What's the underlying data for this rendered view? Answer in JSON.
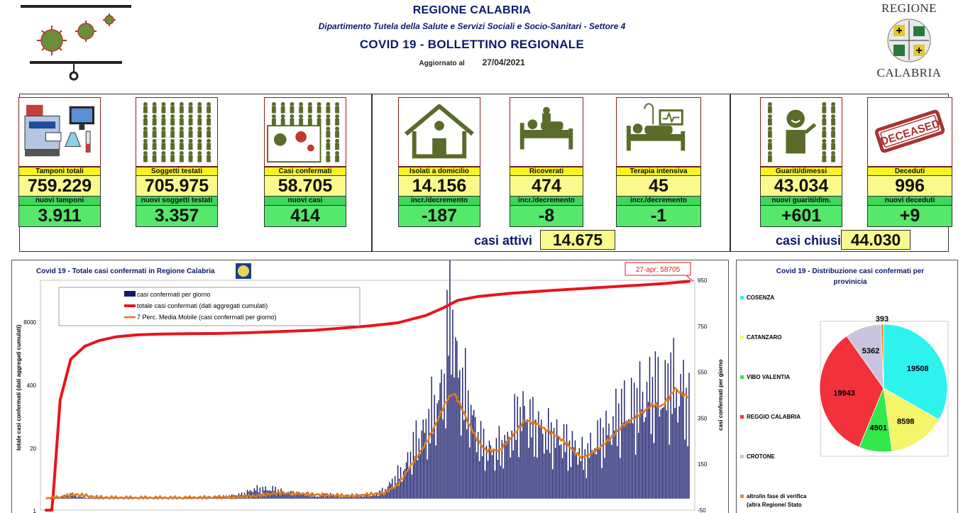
{
  "header": {
    "region": "REGIONE CALABRIA",
    "department": "Dipartimento Tutela della Salute e Servizi Sociali e Socio-Sanitari - Settore 4",
    "bulletin": "COVID 19 - BOLLETTINO REGIONALE",
    "updated_label": "Aggiornato al",
    "updated_date": "27/04/2021",
    "logo_line1": "REGIONE",
    "logo_line2": "CALABRIA"
  },
  "stats": [
    {
      "label": "Tamponi totali",
      "value": "759.229",
      "sublabel": "nuovi tamponi",
      "subvalue": "3.911",
      "icon": "lab-equipment-icon"
    },
    {
      "label": "Soggetti testati",
      "value": "705.975",
      "sublabel": "nuovi soggetti testati",
      "subvalue": "3.357",
      "icon": "people-grid-icon"
    },
    {
      "label": "Casi confermati",
      "value": "58.705",
      "sublabel": "nuovi casi",
      "subvalue": "414",
      "icon": "infected-person-icon"
    },
    {
      "label": "Isolati a domicilio",
      "value": "14.156",
      "sublabel": "incr./decremento",
      "subvalue": "-187",
      "icon": "house-icon"
    },
    {
      "label": "Ricoverati",
      "value": "474",
      "sublabel": "incr./decremento",
      "subvalue": "-8",
      "icon": "hospital-bed-icon"
    },
    {
      "label": "Terapia intensiva",
      "value": "45",
      "sublabel": "incr./decremento",
      "subvalue": "-1",
      "icon": "icu-bed-icon"
    },
    {
      "label": "Guariti/dimessi",
      "value": "43.034",
      "sublabel": "nuovi guariti/dim.",
      "subvalue": "+601",
      "icon": "recovered-person-icon"
    },
    {
      "label": "Deceduti",
      "value": "996",
      "sublabel": "nuovi deceduti",
      "subvalue": "+9",
      "icon": "deceased-stamp-icon"
    }
  ],
  "deceased_stamp": "DECEASED",
  "summary": {
    "active_label": "casi attivi",
    "active_value": "14.675",
    "closed_label": "casi chiusi",
    "closed_value": "44.030"
  },
  "colors": {
    "yellow": "#f7f31f",
    "green": "#55e86b",
    "navy": "#0c1a6b",
    "cumulative_line": "#e8141c",
    "daily_bars": "#151869",
    "moving_average": "#e07a1f"
  },
  "chart_data": [
    {
      "type": "bar",
      "title": "Covid 19 - Totale casi confermati in Regione Calabria",
      "ylabel_left": "totale casi confermati (dati aggregati cumulati)",
      "ylabel_right": "casi confermati per giorno",
      "left_axis_ticks": [
        "1",
        "20",
        "400",
        "8000"
      ],
      "left_axis_scale": "log",
      "right_axis_ticks": [
        -50,
        150,
        350,
        550,
        750,
        950
      ],
      "right_ylim": [
        -50,
        950
      ],
      "callout": "27-apr; 58705",
      "legend": [
        "casi confermati per giorno",
        "totale casi confermati (dati aggregati cumulati)",
        "7 Perc. Media Mobile (casi confermati per giorno)"
      ],
      "legend_placement": "top-left",
      "series": [
        {
          "name": "casi confermati per giorno",
          "type": "bar",
          "anchors": [
            [
              0,
              2
            ],
            [
              18,
              8
            ],
            [
              35,
              20
            ],
            [
              45,
              10
            ],
            [
              55,
              4
            ],
            [
              70,
              4
            ],
            [
              100,
              3
            ],
            [
              150,
              3
            ],
            [
              195,
              4
            ],
            [
              235,
              8
            ],
            [
              260,
              12
            ],
            [
              280,
              20
            ],
            [
              295,
              40
            ],
            [
              325,
              40
            ],
            [
              340,
              25
            ],
            [
              370,
              20
            ],
            [
              385,
              8
            ],
            [
              400,
              20
            ],
            [
              420,
              10
            ],
            [
              440,
              15
            ],
            [
              463,
              12
            ],
            [
              480,
              35
            ],
            [
              495,
              80
            ],
            [
              510,
              130
            ],
            [
              525,
              230
            ],
            [
              540,
              300
            ],
            [
              555,
              390
            ],
            [
              568,
              520
            ],
            [
              575,
              920
            ],
            [
              582,
              600
            ],
            [
              592,
              460
            ],
            [
              605,
              360
            ],
            [
              618,
              230
            ],
            [
              632,
              200
            ],
            [
              645,
              210
            ],
            [
              660,
              260
            ],
            [
              672,
              350
            ],
            [
              682,
              370
            ],
            [
              692,
              300
            ],
            [
              702,
              300
            ],
            [
              715,
              260
            ],
            [
              730,
              260
            ],
            [
              742,
              220
            ],
            [
              752,
              220
            ],
            [
              765,
              170
            ],
            [
              780,
              240
            ],
            [
              795,
              270
            ],
            [
              810,
              330
            ],
            [
              822,
              380
            ],
            [
              834,
              380
            ],
            [
              846,
              420
            ],
            [
              858,
              440
            ],
            [
              868,
              470
            ],
            [
              878,
              420
            ],
            [
              888,
              510
            ],
            [
              896,
              440
            ],
            [
              905,
              460
            ],
            [
              914,
              380
            ]
          ]
        },
        {
          "name": "totale casi confermati (dati aggregati cumulati)",
          "type": "line",
          "anchors": [
            [
              0,
              1
            ],
            [
              8,
              1
            ],
            [
              10,
              2
            ],
            [
              20,
              200
            ],
            [
              35,
              1400
            ],
            [
              55,
              2600
            ],
            [
              75,
              3400
            ],
            [
              100,
              4100
            ],
            [
              130,
              4500
            ],
            [
              160,
              4650
            ],
            [
              200,
              4750
            ],
            [
              240,
              4800
            ],
            [
              280,
              4950
            ],
            [
              330,
              5250
            ],
            [
              380,
              5600
            ],
            [
              420,
              6200
            ],
            [
              460,
              6900
            ],
            [
              500,
              8000
            ],
            [
              540,
              11400
            ],
            [
              565,
              16500
            ],
            [
              585,
              23500
            ],
            [
              615,
              28500
            ],
            [
              660,
              33000
            ],
            [
              720,
              38000
            ],
            [
              780,
              43000
            ],
            [
              840,
              48500
            ],
            [
              880,
              53000
            ],
            [
              914,
              58705
            ]
          ]
        },
        {
          "name": "7 Perc. Media Mobile (casi confermati per giorno)",
          "type": "line",
          "anchors": [
            [
              0,
              0
            ],
            [
              20,
              6
            ],
            [
              40,
              18
            ],
            [
              55,
              14
            ],
            [
              70,
              6
            ],
            [
              90,
              4
            ],
            [
              120,
              3
            ],
            [
              200,
              3
            ],
            [
              260,
              6
            ],
            [
              300,
              12
            ],
            [
              330,
              25
            ],
            [
              370,
              20
            ],
            [
              400,
              15
            ],
            [
              440,
              12
            ],
            [
              480,
              25
            ],
            [
              500,
              60
            ],
            [
              520,
              150
            ],
            [
              540,
              240
            ],
            [
              555,
              330
            ],
            [
              565,
              400
            ],
            [
              572,
              440
            ],
            [
              580,
              460
            ],
            [
              590,
              400
            ],
            [
              600,
              330
            ],
            [
              612,
              260
            ],
            [
              625,
              210
            ],
            [
              645,
              210
            ],
            [
              665,
              280
            ],
            [
              680,
              340
            ],
            [
              695,
              330
            ],
            [
              710,
              300
            ],
            [
              725,
              275
            ],
            [
              740,
              240
            ],
            [
              752,
              200
            ],
            [
              762,
              180
            ],
            [
              775,
              195
            ],
            [
              790,
              230
            ],
            [
              805,
              270
            ],
            [
              820,
              320
            ],
            [
              835,
              350
            ],
            [
              850,
              380
            ],
            [
              862,
              410
            ],
            [
              874,
              400
            ],
            [
              886,
              440
            ],
            [
              894,
              480
            ],
            [
              902,
              460
            ],
            [
              914,
              440
            ]
          ]
        }
      ]
    },
    {
      "type": "pie",
      "title": "Covid 19 - Distribuzione casi confermati per provinicia",
      "legend_placement": "left",
      "slices": [
        {
          "name": "COSENZA",
          "value": 19508,
          "color": "#2ef2ee"
        },
        {
          "name": "CATANZARO",
          "value": 8598,
          "color": "#f5f56a"
        },
        {
          "name": "VIBO VALENTIA",
          "value": 4901,
          "color": "#33e84a"
        },
        {
          "name": "REGGIO CALABRIA",
          "value": 19943,
          "color": "#f2313a"
        },
        {
          "name": "CROTONE",
          "value": 5362,
          "color": "#c9c3dd"
        },
        {
          "name": "altro/in fase di verifica (altra Regione/ Stato",
          "value": 393,
          "color": "#e8862c"
        }
      ]
    }
  ]
}
